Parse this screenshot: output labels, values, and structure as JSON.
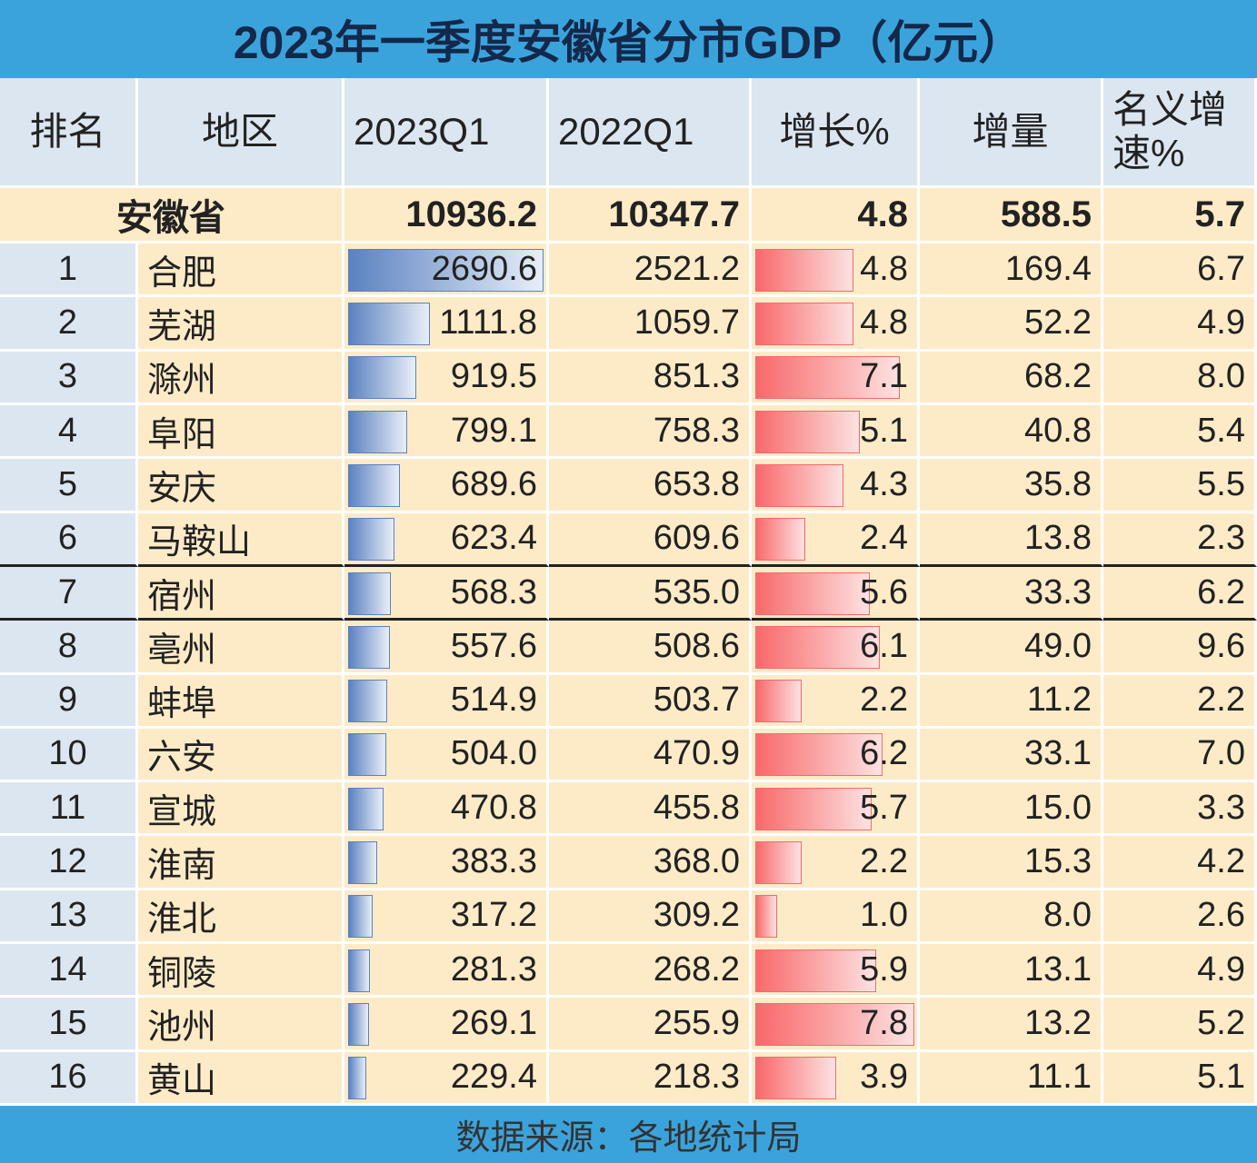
{
  "title": "2023年一季度安徽省分市GDP（亿元）",
  "headers": [
    "排名",
    "地区",
    "2023Q1",
    "2022Q1",
    "增长%",
    "增量",
    "名义增速%"
  ],
  "total": [
    "安徽省",
    "10936.2",
    "10347.7",
    "4.8",
    "588.5",
    "5.7"
  ],
  "rows": [
    [
      "1",
      "合肥",
      "2690.6",
      "2521.2",
      "4.8",
      "169.4",
      "6.7"
    ],
    [
      "2",
      "芜湖",
      "1111.8",
      "1059.7",
      "4.8",
      "52.2",
      "4.9"
    ],
    [
      "3",
      "滁州",
      "919.5",
      "851.3",
      "7.1",
      "68.2",
      "8.0"
    ],
    [
      "4",
      "阜阳",
      "799.1",
      "758.3",
      "5.1",
      "40.8",
      "5.4"
    ],
    [
      "5",
      "安庆",
      "689.6",
      "653.8",
      "4.3",
      "35.8",
      "5.5"
    ],
    [
      "6",
      "马鞍山",
      "623.4",
      "609.6",
      "2.4",
      "13.8",
      "2.3"
    ],
    [
      "7",
      "宿州",
      "568.3",
      "535.0",
      "5.6",
      "33.3",
      "6.2"
    ],
    [
      "8",
      "亳州",
      "557.6",
      "508.6",
      "6.1",
      "49.0",
      "9.6"
    ],
    [
      "9",
      "蚌埠",
      "514.9",
      "503.7",
      "2.2",
      "11.2",
      "2.2"
    ],
    [
      "10",
      "六安",
      "504.0",
      "470.9",
      "6.2",
      "33.1",
      "7.0"
    ],
    [
      "11",
      "宣城",
      "470.8",
      "455.8",
      "5.7",
      "15.0",
      "3.3"
    ],
    [
      "12",
      "淮南",
      "383.3",
      "368.0",
      "2.2",
      "15.3",
      "4.2"
    ],
    [
      "13",
      "淮北",
      "317.2",
      "309.2",
      "1.0",
      "8.0",
      "2.6"
    ],
    [
      "14",
      "铜陵",
      "281.3",
      "268.2",
      "5.9",
      "13.1",
      "4.9"
    ],
    [
      "15",
      "池州",
      "269.1",
      "255.9",
      "7.8",
      "13.2",
      "5.2"
    ],
    [
      "16",
      "黄山",
      "229.4",
      "218.3",
      "3.9",
      "11.1",
      "5.1"
    ]
  ],
  "source": "数据来源：各地统计局"
}
